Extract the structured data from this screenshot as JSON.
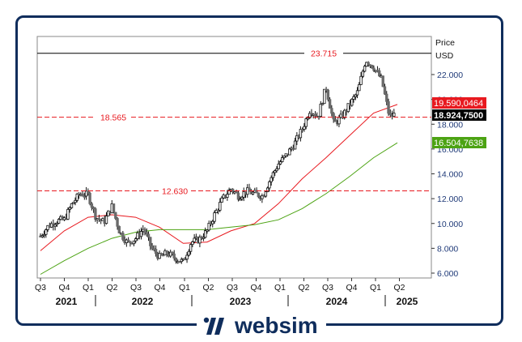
{
  "brand": {
    "name": "websim",
    "color": "#0f2d5c"
  },
  "axis": {
    "title": "Price",
    "unit": "USD",
    "y_ticks": [
      "22.000",
      "20.000",
      "18.000",
      "16.000",
      "14.000",
      "12.000",
      "10.000",
      "8.000",
      "6.000"
    ],
    "quarters": [
      "Q3",
      "Q4",
      "Q1",
      "Q2",
      "Q3",
      "Q4",
      "Q1",
      "Q2",
      "Q3",
      "Q4",
      "Q1",
      "Q2",
      "Q3",
      "Q4",
      "Q1",
      "Q2"
    ],
    "years": [
      "2021",
      "2022",
      "2023",
      "2024",
      "2025"
    ]
  },
  "levels": {
    "high": {
      "label": "23.715",
      "value": 23.715,
      "color": "#000000"
    },
    "mid": {
      "label": "18.565",
      "value": 18.565,
      "color": "#e8191f"
    },
    "low": {
      "label": "12.630",
      "value": 12.63,
      "color": "#e8191f"
    }
  },
  "badges": {
    "ma_red": {
      "label": "19.590,0464",
      "bg": "#e8191f",
      "fg": "#ffffff"
    },
    "last": {
      "label": "18.924,7500",
      "bg": "#000000",
      "fg": "#ffffff"
    },
    "ma_green": {
      "label": "16.504,7638",
      "bg": "#4ca313",
      "fg": "#ffffff"
    }
  },
  "chart_data": {
    "type": "line",
    "title": "",
    "xlabel": "",
    "ylabel": "Price (USD)",
    "ylim": [
      5.6,
      25.0
    ],
    "grid": false,
    "x_range": [
      "2021-07",
      "2025-04"
    ],
    "series": [
      {
        "name": "Price (weekly candles, approx close)",
        "style": "candlestick",
        "x": [
          "2021-07",
          "2021-08",
          "2021-09",
          "2021-10",
          "2021-11",
          "2021-12",
          "2022-01",
          "2022-02",
          "2022-03",
          "2022-04",
          "2022-05",
          "2022-06",
          "2022-07",
          "2022-08",
          "2022-09",
          "2022-10",
          "2022-11",
          "2022-12",
          "2023-01",
          "2023-02",
          "2023-03",
          "2023-04",
          "2023-05",
          "2023-06",
          "2023-07",
          "2023-08",
          "2023-09",
          "2023-10",
          "2023-11",
          "2023-12",
          "2024-01",
          "2024-02",
          "2024-03",
          "2024-04",
          "2024-05",
          "2024-06",
          "2024-07",
          "2024-08",
          "2024-09",
          "2024-10",
          "2024-11",
          "2024-12",
          "2025-01",
          "2025-02",
          "2025-03",
          "2025-04"
        ],
        "values": [
          9.0,
          9.8,
          10.2,
          10.3,
          11.6,
          12.4,
          12.3,
          10.5,
          10.1,
          11.4,
          9.3,
          8.4,
          8.8,
          9.6,
          8.0,
          7.3,
          7.6,
          7.2,
          6.9,
          8.5,
          8.7,
          9.4,
          10.8,
          12.0,
          12.8,
          12.2,
          12.6,
          12.4,
          12.2,
          13.6,
          14.8,
          15.5,
          16.4,
          17.6,
          19.2,
          18.6,
          21.0,
          18.0,
          18.6,
          19.6,
          20.6,
          23.2,
          22.6,
          21.6,
          18.6,
          18.9
        ]
      },
      {
        "name": "MA (red)",
        "x": [
          "2021-07",
          "2021-10",
          "2022-01",
          "2022-04",
          "2022-07",
          "2022-10",
          "2023-01",
          "2023-04",
          "2023-07",
          "2023-10",
          "2024-01",
          "2024-04",
          "2024-07",
          "2024-10",
          "2025-01",
          "2025-04"
        ],
        "values": [
          7.8,
          9.4,
          10.5,
          10.7,
          10.5,
          9.7,
          8.4,
          8.5,
          9.4,
          10.0,
          11.6,
          13.6,
          15.3,
          17.1,
          18.9,
          19.59
        ]
      },
      {
        "name": "MA (green)",
        "x": [
          "2021-07",
          "2021-10",
          "2022-01",
          "2022-04",
          "2022-07",
          "2022-10",
          "2023-01",
          "2023-04",
          "2023-07",
          "2023-10",
          "2024-01",
          "2024-04",
          "2024-07",
          "2024-10",
          "2025-01",
          "2025-04"
        ],
        "values": [
          5.9,
          7.0,
          8.0,
          8.8,
          9.3,
          9.5,
          9.5,
          9.5,
          9.7,
          9.9,
          10.3,
          11.2,
          12.4,
          13.8,
          15.3,
          16.5
        ]
      }
    ],
    "horizontal_lines": [
      {
        "label": "23.715",
        "value": 23.715,
        "style": "solid",
        "color": "#000000"
      },
      {
        "label": "18.565",
        "value": 18.565,
        "style": "dashed",
        "color": "#e8191f"
      },
      {
        "label": "12.630",
        "value": 12.63,
        "style": "dashed",
        "color": "#e8191f"
      }
    ],
    "value_badges": [
      {
        "label": "19.590,0464",
        "series": "MA (red)"
      },
      {
        "label": "18.924,7500",
        "series": "Price"
      },
      {
        "label": "16.504,7638",
        "series": "MA (green)"
      }
    ],
    "x_tick_labels": [
      "Q3",
      "Q4",
      "Q1",
      "Q2",
      "Q3",
      "Q4",
      "Q1",
      "Q2",
      "Q3",
      "Q4",
      "Q1",
      "Q2",
      "Q3",
      "Q4",
      "Q1",
      "Q2"
    ],
    "x_year_labels": [
      "2021",
      "2022",
      "2023",
      "2024",
      "2025"
    ],
    "y_tick_labels": [
      "6.000",
      "8.000",
      "10.000",
      "12.000",
      "14.000",
      "16.000",
      "18.000",
      "20.000",
      "22.000"
    ],
    "axis_title": "Price",
    "axis_unit": "USD"
  }
}
